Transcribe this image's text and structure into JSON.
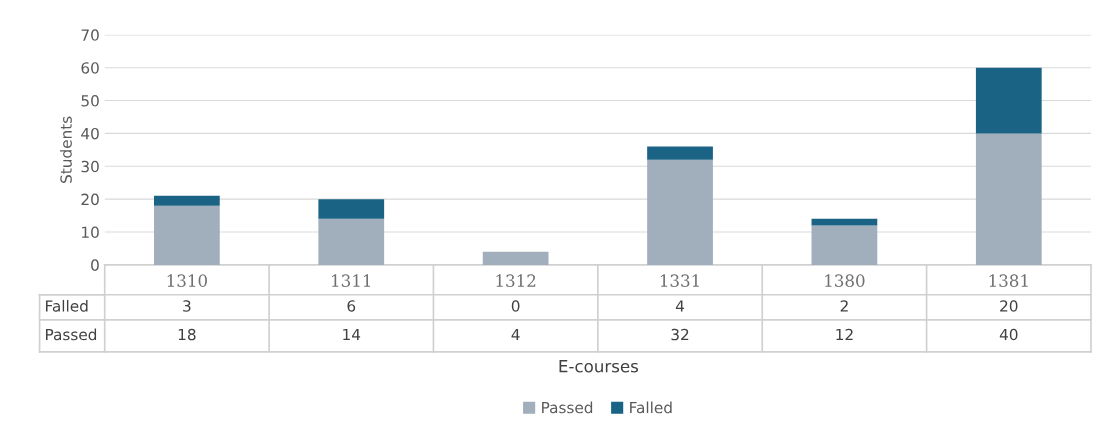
{
  "chart_data": {
    "type": "bar",
    "stacked": true,
    "xlabel": "E-courses",
    "ylabel": "Students",
    "categories": [
      "1310",
      "1311",
      "1312",
      "1331",
      "1380",
      "1381"
    ],
    "series": [
      {
        "name": "Passed",
        "color": "#a1aebb",
        "values": [
          18,
          14,
          4,
          32,
          12,
          40
        ]
      },
      {
        "name": "Falled",
        "color": "#1a6385",
        "values": [
          3,
          6,
          0,
          4,
          2,
          20
        ]
      }
    ],
    "ylim": [
      0,
      70
    ],
    "yticks": [
      0,
      10,
      20,
      30,
      40,
      50,
      60,
      70
    ],
    "grid": "y",
    "legend": "bottom",
    "data_labels": true
  }
}
